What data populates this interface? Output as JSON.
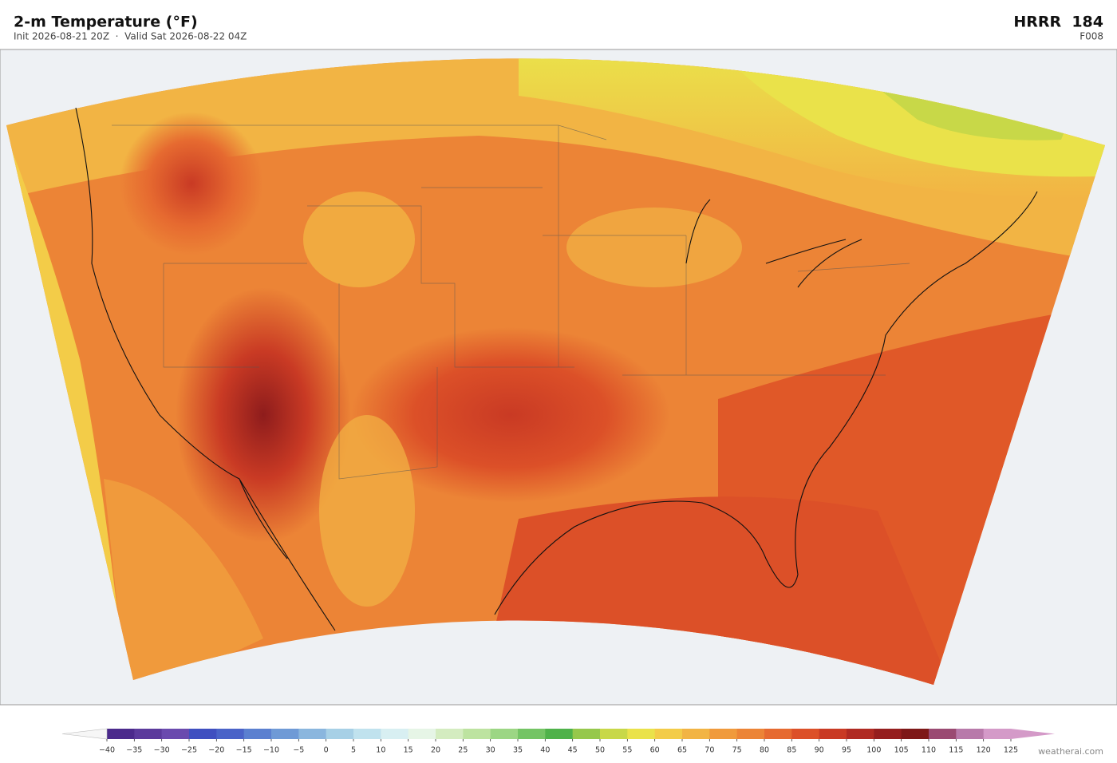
{
  "header": {
    "title": "2-m Temperature  (°F)",
    "subtitle": "Init 2026-08-21 20Z  ·  Valid Sat 2026-08-22 04Z",
    "model": "HRRR  184",
    "forecast_hour": "F008"
  },
  "colorbar": {
    "ticks": [
      {
        "value": -40,
        "label": "−40"
      },
      {
        "value": -35,
        "label": "−35"
      },
      {
        "value": -30,
        "label": "−30"
      },
      {
        "value": -25,
        "label": "−25"
      },
      {
        "value": -20,
        "label": "−20"
      },
      {
        "value": -15,
        "label": "−15"
      },
      {
        "value": -10,
        "label": "−10"
      },
      {
        "value": -5,
        "label": "−5"
      },
      0,
      5,
      10,
      15,
      20,
      25,
      30,
      35,
      40,
      45,
      50,
      55,
      60,
      65,
      70,
      75,
      80,
      85,
      90,
      95,
      100,
      105,
      110,
      115,
      120,
      125
    ],
    "colors": [
      "#4b2a8c",
      "#5b3a9c",
      "#6a4aae",
      "#3f4fc0",
      "#4a63c8",
      "#5b80d0",
      "#6f9ad6",
      "#8ab6de",
      "#a7d0e6",
      "#c0e2ee",
      "#d8eff2",
      "#e6f5e6",
      "#d4ecc0",
      "#bde3a0",
      "#9cd684",
      "#74c464",
      "#4fb24a",
      "#96c84c",
      "#c8d848",
      "#eae24a",
      "#f3cc48",
      "#f2b444",
      "#f09a3c",
      "#ec8436",
      "#e66a30",
      "#dc5028",
      "#c93a24",
      "#b02a22",
      "#951e1e",
      "#7e1818",
      "#9a4a72",
      "#b87aaa",
      "#d49ac8"
    ],
    "extend_colors": [
      "#f6f6f6",
      "#d49ac8"
    ]
  },
  "footer": {
    "credit": "weatherai.com"
  }
}
